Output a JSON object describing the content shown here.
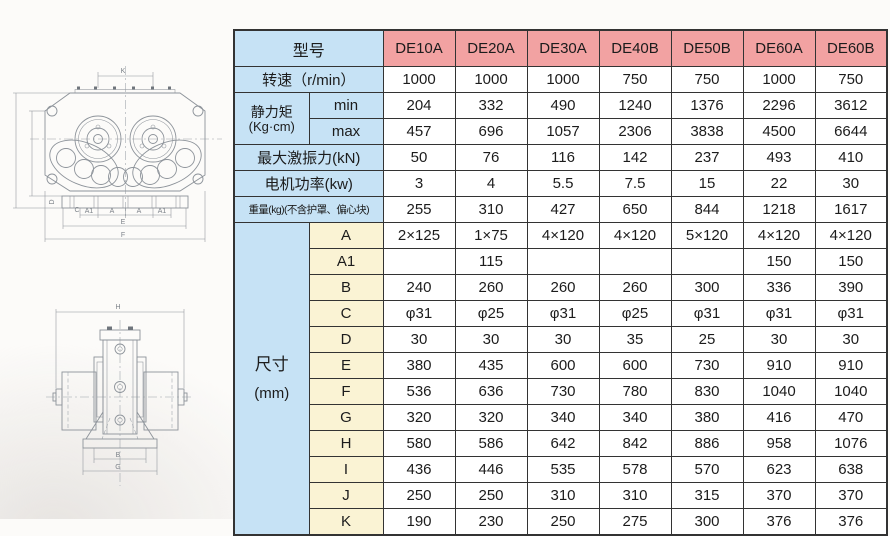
{
  "colors": {
    "header_bg": "#f2a2a2",
    "label_bg": "#c6e2f5",
    "dim_bg": "#faf3d4",
    "cell_bg": "#ffffff",
    "border": "#333333",
    "text": "#1c1c1c",
    "drawing_line": "#8d939a"
  },
  "table": {
    "corner_label": "型号",
    "models": [
      "DE10A",
      "DE20A",
      "DE30A",
      "DE40B",
      "DE50B",
      "DE60A",
      "DE60B"
    ],
    "speed": {
      "label": "转速（r/min）",
      "values": [
        "1000",
        "1000",
        "1000",
        "750",
        "750",
        "1000",
        "750"
      ]
    },
    "static_moment": {
      "label": "静力矩",
      "unit": "(Kg·cm)",
      "rows": [
        {
          "sub": "min",
          "values": [
            "204",
            "332",
            "490",
            "1240",
            "1376",
            "2296",
            "3612"
          ]
        },
        {
          "sub": "max",
          "values": [
            "457",
            "696",
            "1057",
            "2306",
            "3838",
            "4500",
            "6644"
          ]
        }
      ]
    },
    "force": {
      "label": "最大激振力(kN)",
      "values": [
        "50",
        "76",
        "116",
        "142",
        "237",
        "493",
        "410"
      ]
    },
    "power": {
      "label": "电机功率(kw)",
      "values": [
        "3",
        "4",
        "5.5",
        "7.5",
        "15",
        "22",
        "30"
      ]
    },
    "weight": {
      "label": "重量(kg)(不含护罩、偏心块)",
      "values": [
        "255",
        "310",
        "427",
        "650",
        "844",
        "1218",
        "1617"
      ]
    },
    "dimensions": {
      "label": "尺寸",
      "unit": "(mm)",
      "rows": [
        {
          "sub": "A",
          "values": [
            "2×125",
            "1×75",
            "4×120",
            "4×120",
            "5×120",
            "4×120",
            "4×120"
          ]
        },
        {
          "sub": "A1",
          "values": [
            "",
            "115",
            "",
            "",
            "",
            "150",
            "150"
          ]
        },
        {
          "sub": "B",
          "values": [
            "240",
            "260",
            "260",
            "260",
            "300",
            "336",
            "390"
          ]
        },
        {
          "sub": "C",
          "values": [
            "φ31",
            "φ25",
            "φ31",
            "φ25",
            "φ31",
            "φ31",
            "φ31"
          ]
        },
        {
          "sub": "D",
          "values": [
            "30",
            "30",
            "30",
            "35",
            "25",
            "30",
            "30"
          ]
        },
        {
          "sub": "E",
          "values": [
            "380",
            "435",
            "600",
            "600",
            "730",
            "910",
            "910"
          ]
        },
        {
          "sub": "F",
          "values": [
            "536",
            "636",
            "730",
            "780",
            "830",
            "1040",
            "1040"
          ]
        },
        {
          "sub": "G",
          "values": [
            "320",
            "320",
            "340",
            "340",
            "380",
            "416",
            "470"
          ]
        },
        {
          "sub": "H",
          "values": [
            "580",
            "586",
            "642",
            "842",
            "886",
            "958",
            "1076"
          ]
        },
        {
          "sub": "I",
          "values": [
            "436",
            "446",
            "535",
            "578",
            "570",
            "623",
            "638"
          ]
        },
        {
          "sub": "J",
          "values": [
            "250",
            "250",
            "310",
            "310",
            "315",
            "370",
            "370"
          ]
        },
        {
          "sub": "K",
          "values": [
            "190",
            "230",
            "250",
            "275",
            "300",
            "376",
            "376"
          ]
        }
      ]
    }
  },
  "drawings": {
    "top_view": {
      "dim_labels": {
        "k": "K",
        "a1_left": "A1",
        "a_left": "A",
        "a_right": "A",
        "a1_right": "A1",
        "c": "C",
        "d": "D",
        "e": "E",
        "f": "F"
      }
    },
    "side_view": {
      "dim_labels": {
        "h": "H",
        "b": "B",
        "g": "G"
      }
    }
  }
}
